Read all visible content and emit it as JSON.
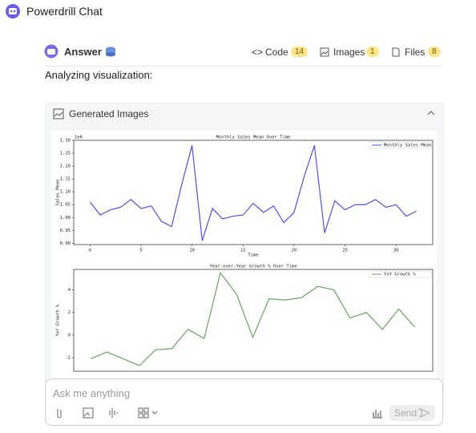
{
  "header": {
    "title": "Powerdrill Chat"
  },
  "answer": {
    "title": "Answer",
    "tabs": [
      {
        "label": "Code",
        "count": 14
      },
      {
        "label": "Images",
        "count": 1
      },
      {
        "label": "Files",
        "count": 8
      }
    ],
    "text": "Analyzing visualization:",
    "panel_title": "Generated Images"
  },
  "chart_data": [
    {
      "type": "line",
      "title": "Monthly Sales Mean Over Time",
      "x_label": "Time",
      "y_label": "Sales Mean",
      "y_offset_label": "1e6",
      "series": [
        {
          "name": "Monthly Sales Mean",
          "color": "#5050e0",
          "x": [
            0,
            1,
            2,
            3,
            4,
            5,
            6,
            7,
            8,
            9,
            10,
            11,
            12,
            13,
            14,
            15,
            16,
            17,
            18,
            19,
            20,
            21,
            22,
            23,
            24,
            25,
            26,
            27,
            28,
            29,
            30,
            31,
            32
          ],
          "values": [
            1.06,
            1.01,
            1.03,
            1.04,
            1.07,
            1.035,
            1.045,
            0.985,
            0.965,
            1.13,
            1.28,
            0.91,
            1.035,
            0.995,
            1.005,
            1.01,
            1.055,
            1.02,
            1.045,
            0.98,
            1.02,
            1.16,
            1.28,
            0.94,
            1.065,
            1.03,
            1.05,
            1.05,
            1.07,
            1.04,
            1.05,
            1.005,
            1.025
          ]
        }
      ],
      "xlim": [
        -1.6,
        33.6
      ],
      "xticks": [
        0,
        5,
        10,
        15,
        20,
        25,
        30
      ],
      "ylim": [
        0.895,
        1.3
      ],
      "yticks": [
        {
          "value": 0.9,
          "label": "0.90"
        },
        {
          "value": 0.95,
          "label": "0.95"
        },
        {
          "value": 1.0,
          "label": "1.00"
        },
        {
          "value": 1.05,
          "label": "1.05"
        },
        {
          "value": 1.1,
          "label": "1.10"
        },
        {
          "value": 1.15,
          "label": "1.15"
        },
        {
          "value": 1.2,
          "label": "1.20"
        },
        {
          "value": 1.25,
          "label": "1.25"
        },
        {
          "value": 1.3,
          "label": "1.30"
        }
      ],
      "legend": "upper right"
    },
    {
      "type": "line",
      "title": "Year-over-Year Growth % Over Time",
      "y_label": "YoY Growth %",
      "series": [
        {
          "name": "YoY Growth %",
          "color": "#6aa263",
          "x": [
            0,
            1,
            2,
            3,
            4,
            5,
            6,
            7,
            8,
            9,
            10,
            11,
            12,
            13,
            14,
            15,
            16,
            17,
            18,
            19,
            20
          ],
          "values": [
            -2.1,
            -1.5,
            -2.1,
            -2.7,
            -1.3,
            -1.2,
            0.5,
            -0.3,
            5.5,
            3.6,
            -0.2,
            3.2,
            3.1,
            3.3,
            4.3,
            4.0,
            1.5,
            2.0,
            0.5,
            2.3,
            0.7
          ]
        }
      ],
      "xlim": [
        -1.05,
        21.1
      ],
      "ylim": [
        -3.2,
        5.8
      ],
      "yticks": [
        -2,
        0,
        2,
        4
      ],
      "legend": "upper right"
    }
  ],
  "input": {
    "placeholder": "Ask me anything",
    "send": "Send"
  }
}
